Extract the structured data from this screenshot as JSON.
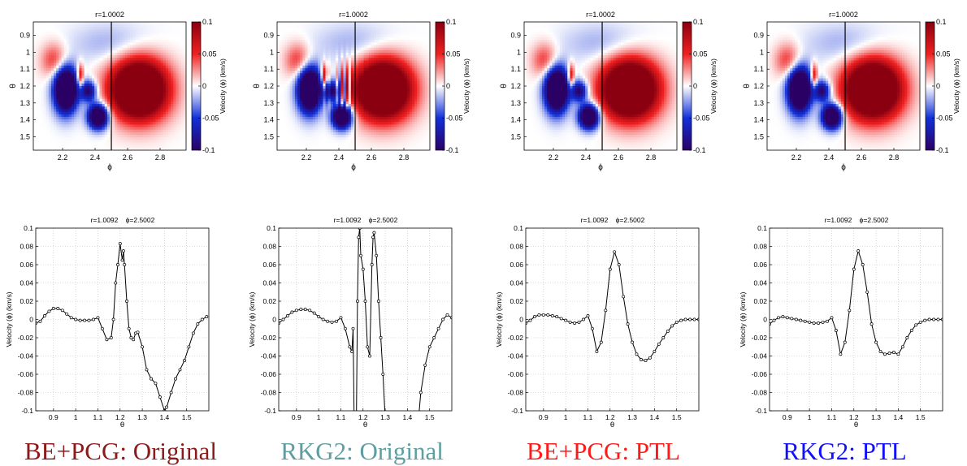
{
  "captions": [
    {
      "text": "BE+PCG: Original",
      "color": "#8b1a1a"
    },
    {
      "text": "RKG2: Original",
      "color": "#5f9ea0"
    },
    {
      "text": "BE+PCG: PTL",
      "color": "#ff1a1a"
    },
    {
      "text": "RKG2: PTL",
      "color": "#1010ff"
    }
  ],
  "heatmap_common": {
    "title": "r=1.0002",
    "xlabel": "ϕ",
    "ylabel": "θ",
    "xticks": [
      2.2,
      2.4,
      2.6,
      2.8
    ],
    "xtick_labels": [
      "2.2",
      "2.4",
      "2.6",
      "2.8"
    ],
    "yticks": [
      0.9,
      1.0,
      1.1,
      1.2,
      1.3,
      1.4,
      1.5
    ],
    "ytick_labels": [
      "0.9",
      "1",
      "1.1",
      "1.2",
      "1.3",
      "1.4",
      "1.5"
    ],
    "xlim": [
      2.02,
      2.96
    ],
    "ylim": [
      0.82,
      1.58
    ],
    "colorbar_label": "Velocity (ϕ) (km/s)",
    "colorbar_ticks": [
      0.1,
      0.05,
      0,
      -0.05,
      -0.1
    ],
    "colorbar_tick_labels": [
      "0.1",
      "0.05",
      "0",
      "-0.05",
      "-0.1"
    ],
    "clim": [
      -0.1,
      0.1
    ],
    "colormap": [
      "#2b0064",
      "#1030d8",
      "#ffffff",
      "#f02020",
      "#8a0010"
    ],
    "cut_line_phi": 2.5002
  },
  "line_common": {
    "title_r": "r=1.0092",
    "title_phi": "ϕ=2.5002",
    "xlabel": "θ",
    "ylabel": "Velocity (ϕ) (km/s)",
    "xticks": [
      0.9,
      1.0,
      1.1,
      1.2,
      1.3,
      1.4,
      1.5
    ],
    "xtick_labels": [
      "0.9",
      "1",
      "1.1",
      "1.2",
      "1.3",
      "1.4",
      "1.5"
    ],
    "yticks": [
      -0.1,
      -0.08,
      -0.06,
      -0.04,
      -0.02,
      0,
      0.02,
      0.04,
      0.06,
      0.08,
      0.1
    ],
    "ytick_labels": [
      "-0.1",
      "-0.08",
      "-0.06",
      "-0.04",
      "-0.02",
      "0",
      "0.02",
      "0.04",
      "0.06",
      "0.08",
      "0.1"
    ],
    "xlim": [
      0.82,
      1.6
    ],
    "ylim": [
      -0.1,
      0.1
    ],
    "grid": true,
    "line_color": "#000000"
  },
  "chart_data": [
    {
      "type": "heatmap",
      "panel": "BE+PCG: Original",
      "title": "r=1.0002",
      "xlabel": "ϕ",
      "ylabel": "θ",
      "xlim": [
        2.02,
        2.96
      ],
      "ylim": [
        0.82,
        1.58
      ],
      "clim": [
        -0.1,
        0.1
      ],
      "noise": 0.0
    },
    {
      "type": "heatmap",
      "panel": "RKG2: Original",
      "title": "r=1.0002",
      "xlabel": "ϕ",
      "ylabel": "θ",
      "xlim": [
        2.02,
        2.96
      ],
      "ylim": [
        0.82,
        1.58
      ],
      "clim": [
        -0.1,
        0.1
      ],
      "noise": 1.0
    },
    {
      "type": "heatmap",
      "panel": "BE+PCG: PTL",
      "title": "r=1.0002",
      "xlabel": "ϕ",
      "ylabel": "θ",
      "xlim": [
        2.02,
        2.96
      ],
      "ylim": [
        0.82,
        1.58
      ],
      "clim": [
        -0.1,
        0.1
      ],
      "noise": 0.0
    },
    {
      "type": "heatmap",
      "panel": "RKG2: PTL",
      "title": "r=1.0002",
      "xlabel": "ϕ",
      "ylabel": "θ",
      "xlim": [
        2.02,
        2.96
      ],
      "ylim": [
        0.82,
        1.58
      ],
      "clim": [
        -0.1,
        0.1
      ],
      "noise": 0.0
    },
    {
      "type": "line",
      "panel": "BE+PCG: Original",
      "xlim": [
        0.82,
        1.6
      ],
      "ylim": [
        -0.1,
        0.1
      ],
      "x": [
        0.82,
        0.84,
        0.86,
        0.88,
        0.9,
        0.92,
        0.94,
        0.96,
        0.98,
        1.0,
        1.02,
        1.04,
        1.06,
        1.08,
        1.1,
        1.12,
        1.14,
        1.16,
        1.17,
        1.18,
        1.19,
        1.2,
        1.21,
        1.215,
        1.22,
        1.23,
        1.24,
        1.25,
        1.26,
        1.27,
        1.28,
        1.3,
        1.32,
        1.34,
        1.36,
        1.38,
        1.4,
        1.41,
        1.43,
        1.45,
        1.47,
        1.49,
        1.51,
        1.53,
        1.55,
        1.57,
        1.59
      ],
      "y": [
        -0.004,
        -0.002,
        0.004,
        0.009,
        0.012,
        0.012,
        0.01,
        0.006,
        0.002,
        0.0,
        -0.001,
        -0.001,
        -0.001,
        0.0,
        0.002,
        -0.01,
        -0.022,
        -0.02,
        0.0,
        0.04,
        0.06,
        0.083,
        0.065,
        0.075,
        0.06,
        0.02,
        -0.01,
        -0.02,
        -0.022,
        -0.015,
        -0.014,
        -0.03,
        -0.055,
        -0.065,
        -0.07,
        -0.085,
        -0.1,
        -0.096,
        -0.08,
        -0.065,
        -0.055,
        -0.045,
        -0.03,
        -0.015,
        -0.005,
        0.0,
        0.003
      ]
    },
    {
      "type": "line",
      "panel": "RKG2: Original",
      "xlim": [
        0.82,
        1.6
      ],
      "ylim": [
        -0.1,
        0.1
      ],
      "x": [
        0.82,
        0.84,
        0.86,
        0.88,
        0.9,
        0.92,
        0.94,
        0.96,
        0.98,
        1.0,
        1.02,
        1.04,
        1.06,
        1.08,
        1.1,
        1.12,
        1.14,
        1.15,
        1.155,
        1.16,
        1.17,
        1.175,
        1.18,
        1.185,
        1.19,
        1.2,
        1.21,
        1.22,
        1.23,
        1.24,
        1.245,
        1.25,
        1.26,
        1.27,
        1.28,
        1.29,
        1.3,
        1.45,
        1.46,
        1.48,
        1.5,
        1.52,
        1.54,
        1.56,
        1.58,
        1.6
      ],
      "y": [
        -0.004,
        0.0,
        0.004,
        0.008,
        0.01,
        0.011,
        0.011,
        0.01,
        0.007,
        0.003,
        0.0,
        -0.002,
        -0.003,
        -0.002,
        0.002,
        -0.01,
        -0.03,
        -0.035,
        -0.01,
        -0.11,
        -0.11,
        0.02,
        0.09,
        0.1,
        0.07,
        0.055,
        0.02,
        -0.03,
        -0.04,
        0.06,
        0.09,
        0.095,
        0.07,
        0.02,
        -0.02,
        -0.06,
        -0.11,
        -0.11,
        -0.08,
        -0.05,
        -0.03,
        -0.02,
        -0.01,
        0.0,
        0.005,
        0.002
      ]
    },
    {
      "type": "line",
      "panel": "BE+PCG: PTL",
      "xlim": [
        0.82,
        1.6
      ],
      "ylim": [
        -0.1,
        0.1
      ],
      "x": [
        0.82,
        0.84,
        0.86,
        0.88,
        0.9,
        0.92,
        0.94,
        0.96,
        0.98,
        1.0,
        1.02,
        1.04,
        1.06,
        1.08,
        1.1,
        1.12,
        1.14,
        1.16,
        1.18,
        1.2,
        1.22,
        1.24,
        1.26,
        1.28,
        1.3,
        1.32,
        1.34,
        1.36,
        1.38,
        1.4,
        1.42,
        1.44,
        1.46,
        1.48,
        1.5,
        1.52,
        1.54,
        1.56,
        1.58,
        1.6
      ],
      "y": [
        -0.004,
        -0.001,
        0.003,
        0.005,
        0.005,
        0.005,
        0.004,
        0.003,
        0.001,
        -0.001,
        -0.003,
        -0.004,
        -0.003,
        0.0,
        0.004,
        -0.01,
        -0.035,
        -0.025,
        0.01,
        0.055,
        0.074,
        0.06,
        0.025,
        -0.005,
        -0.025,
        -0.038,
        -0.044,
        -0.045,
        -0.042,
        -0.035,
        -0.027,
        -0.02,
        -0.013,
        -0.007,
        -0.003,
        -0.001,
        0.0,
        0.0,
        0.0,
        0.0
      ]
    },
    {
      "type": "line",
      "panel": "RKG2: PTL",
      "xlim": [
        0.82,
        1.6
      ],
      "ylim": [
        -0.1,
        0.1
      ],
      "x": [
        0.82,
        0.84,
        0.86,
        0.88,
        0.9,
        0.92,
        0.94,
        0.96,
        0.98,
        1.0,
        1.02,
        1.04,
        1.06,
        1.08,
        1.1,
        1.12,
        1.14,
        1.16,
        1.18,
        1.2,
        1.22,
        1.24,
        1.26,
        1.28,
        1.3,
        1.32,
        1.34,
        1.36,
        1.38,
        1.4,
        1.42,
        1.44,
        1.46,
        1.48,
        1.5,
        1.52,
        1.54,
        1.56,
        1.58,
        1.6
      ],
      "y": [
        -0.005,
        -0.001,
        0.002,
        0.003,
        0.002,
        0.001,
        0.0,
        -0.001,
        -0.002,
        -0.003,
        -0.004,
        -0.004,
        -0.003,
        -0.002,
        0.002,
        -0.012,
        -0.038,
        -0.025,
        0.01,
        0.055,
        0.075,
        0.06,
        0.03,
        -0.005,
        -0.025,
        -0.035,
        -0.038,
        -0.037,
        -0.036,
        -0.038,
        -0.03,
        -0.02,
        -0.012,
        -0.006,
        -0.003,
        -0.001,
        0.0,
        0.0,
        0.0,
        0.0
      ]
    }
  ]
}
